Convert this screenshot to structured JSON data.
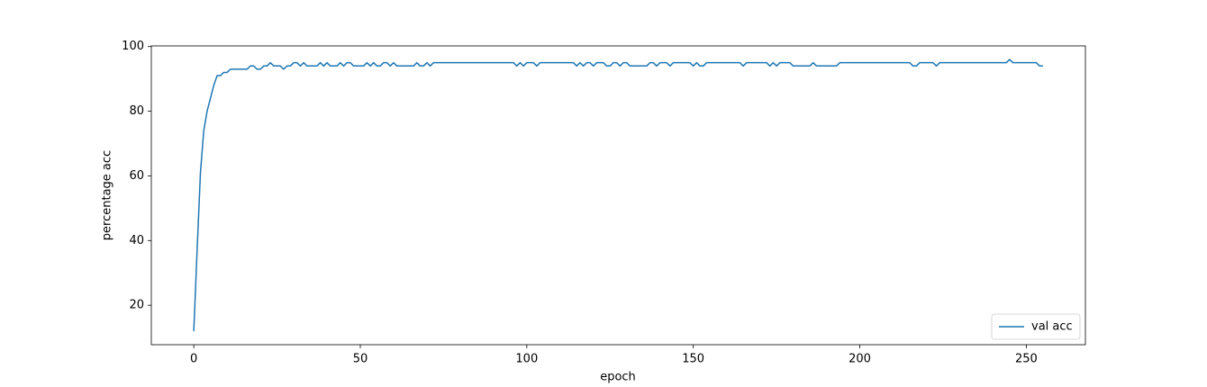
{
  "chart_data": {
    "type": "line",
    "x_label": "epoch",
    "y_label": "percentage acc",
    "x": [
      0,
      1,
      2,
      3,
      4,
      5,
      6,
      7,
      8,
      9,
      10,
      11,
      12,
      13,
      14,
      15,
      16,
      17,
      18,
      19,
      20,
      21,
      22,
      23,
      24,
      25,
      26,
      27,
      28,
      29,
      30,
      31,
      32,
      33,
      34,
      35,
      36,
      37,
      38,
      39,
      40,
      41,
      42,
      43,
      44,
      45,
      46,
      47,
      48,
      49,
      50,
      51,
      52,
      53,
      54,
      55,
      56,
      57,
      58,
      59,
      60,
      61,
      62,
      63,
      64,
      65,
      66,
      67,
      68,
      69,
      70,
      71,
      72,
      73,
      74,
      75,
      76,
      77,
      78,
      79,
      80,
      81,
      82,
      83,
      84,
      85,
      86,
      87,
      88,
      89,
      90,
      91,
      92,
      93,
      94,
      95,
      96,
      97,
      98,
      99,
      100,
      101,
      102,
      103,
      104,
      105,
      106,
      107,
      108,
      109,
      110,
      111,
      112,
      113,
      114,
      115,
      116,
      117,
      118,
      119,
      120,
      121,
      122,
      123,
      124,
      125,
      126,
      127,
      128,
      129,
      130,
      131,
      132,
      133,
      134,
      135,
      136,
      137,
      138,
      139,
      140,
      141,
      142,
      143,
      144,
      145,
      146,
      147,
      148,
      149,
      150,
      151,
      152,
      153,
      154,
      155,
      156,
      157,
      158,
      159,
      160,
      161,
      162,
      163,
      164,
      165,
      166,
      167,
      168,
      169,
      170,
      171,
      172,
      173,
      174,
      175,
      176,
      177,
      178,
      179,
      180,
      181,
      182,
      183,
      184,
      185,
      186,
      187,
      188,
      189,
      190,
      191,
      192,
      193,
      194,
      195,
      196,
      197,
      198,
      199,
      200,
      201,
      202,
      203,
      204,
      205,
      206,
      207,
      208,
      209,
      210,
      211,
      212,
      213,
      214,
      215,
      216,
      217,
      218,
      219,
      220,
      221,
      222,
      223,
      224,
      225,
      226,
      227,
      228,
      229,
      230,
      231,
      232,
      233,
      234,
      235,
      236,
      237,
      238,
      239,
      240,
      241,
      242,
      243,
      244,
      245,
      246,
      247,
      248,
      249,
      250,
      251,
      252,
      253,
      254,
      255
    ],
    "series": [
      {
        "name": "val acc",
        "color": "#1f77b4",
        "values": [
          12,
          37,
          61,
          74,
          80,
          84,
          88,
          91,
          91,
          92,
          92,
          93,
          93,
          93,
          93,
          93,
          93,
          94,
          94,
          93,
          93,
          94,
          94,
          95,
          94,
          94,
          94,
          93,
          94,
          94,
          95,
          95,
          94,
          95,
          94,
          94,
          94,
          94,
          95,
          94,
          95,
          94,
          94,
          94,
          95,
          94,
          95,
          95,
          94,
          94,
          94,
          94,
          95,
          94,
          95,
          94,
          94,
          95,
          95,
          94,
          95,
          94,
          94,
          94,
          94,
          94,
          94,
          95,
          94,
          94,
          95,
          94,
          95,
          95,
          95,
          95,
          95,
          95,
          95,
          95,
          95,
          95,
          95,
          95,
          95,
          95,
          95,
          95,
          95,
          95,
          95,
          95,
          95,
          95,
          95,
          95,
          95,
          94,
          95,
          94,
          95,
          95,
          95,
          94,
          95,
          95,
          95,
          95,
          95,
          95,
          95,
          95,
          95,
          95,
          95,
          94,
          95,
          94,
          95,
          95,
          94,
          95,
          95,
          95,
          94,
          94,
          95,
          95,
          94,
          95,
          95,
          94,
          94,
          94,
          94,
          94,
          94,
          95,
          95,
          94,
          95,
          95,
          95,
          94,
          95,
          95,
          95,
          95,
          95,
          95,
          94,
          95,
          94,
          94,
          95,
          95,
          95,
          95,
          95,
          95,
          95,
          95,
          95,
          95,
          95,
          94,
          95,
          95,
          95,
          95,
          95,
          95,
          95,
          94,
          95,
          94,
          95,
          95,
          95,
          95,
          94,
          94,
          94,
          94,
          94,
          94,
          95,
          94,
          94,
          94,
          94,
          94,
          94,
          94,
          95,
          95,
          95,
          95,
          95,
          95,
          95,
          95,
          95,
          95,
          95,
          95,
          95,
          95,
          95,
          95,
          95,
          95,
          95,
          95,
          95,
          95,
          94,
          94,
          95,
          95,
          95,
          95,
          95,
          94,
          95,
          95,
          95,
          95,
          95,
          95,
          95,
          95,
          95,
          95,
          95,
          95,
          95,
          95,
          95,
          95,
          95,
          95,
          95,
          95,
          95,
          96,
          95,
          95,
          95,
          95,
          95,
          95,
          95,
          95,
          94,
          94
        ]
      }
    ],
    "xlim": [
      -12.75,
      267.75
    ],
    "ylim": [
      7.8,
      100.2
    ],
    "xticks": [
      0,
      50,
      100,
      150,
      200,
      250
    ],
    "yticks": [
      20,
      40,
      60,
      80,
      100
    ],
    "legend": "lower right"
  }
}
